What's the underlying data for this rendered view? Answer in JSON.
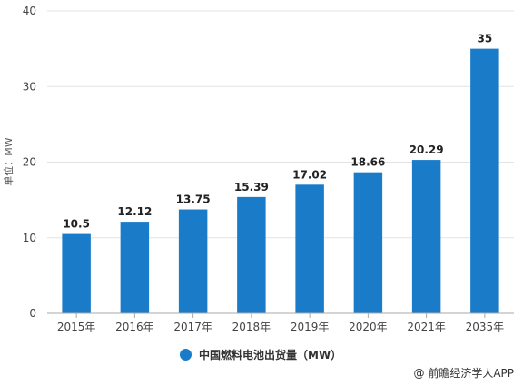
{
  "chart_data": {
    "type": "bar",
    "categories": [
      "2015年",
      "2016年",
      "2017年",
      "2018年",
      "2019年",
      "2020年",
      "2021年",
      "2035年"
    ],
    "series": [
      {
        "name": "中国燃料电池出货量（MW）",
        "values": [
          10.5,
          12.12,
          13.75,
          15.39,
          17.02,
          18.66,
          20.29,
          35
        ]
      }
    ],
    "value_labels": [
      "10.5",
      "12.12",
      "13.75",
      "15.39",
      "17.02",
      "18.66",
      "20.29",
      "35"
    ],
    "ylabel": "单位：MW",
    "ylim": [
      0,
      40
    ],
    "yticks": [
      "0",
      "10",
      "20",
      "30",
      "40"
    ],
    "grid": true,
    "legend_position": "bottom",
    "bar_color": "#1a7bc9"
  },
  "source": "@ 前瞻经济学人APP"
}
